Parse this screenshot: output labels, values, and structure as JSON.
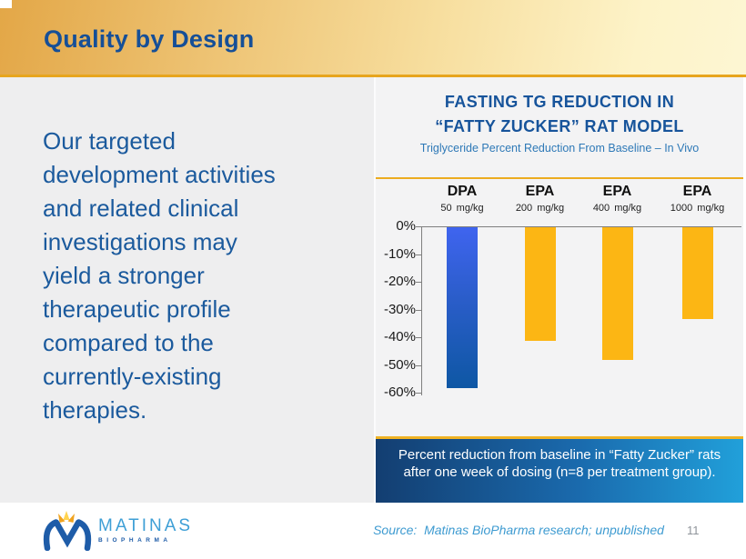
{
  "slide": {
    "title": "Quality by Design",
    "page_number": "11",
    "source_text": "Source:  Matinas BioPharma research; unpublished"
  },
  "left_panel": {
    "body_text": "Our targeted\ndevelopment activities\nand related clinical\ninvestigations may\nyield a stronger\ntherapeutic profile\ncompared to the\ncurrently-existing\ntherapies."
  },
  "chart_data": {
    "type": "bar",
    "title_line1": "FASTING TG REDUCTION IN",
    "title_line2": "“FATTY ZUCKER” RAT MODEL",
    "subtitle": "Triglyceride Percent Reduction From Baseline – In Vivo",
    "categories": [
      "DPA",
      "EPA",
      "EPA",
      "EPA"
    ],
    "doses": [
      "50 mg/kg",
      "200 mg/kg",
      "400 mg/kg",
      "1000 mg/kg"
    ],
    "values": [
      -58,
      -41,
      -48,
      -33
    ],
    "unit": "%",
    "bar_styles": [
      "blue",
      "gold",
      "gold",
      "gold"
    ],
    "y_ticks": [
      "0%",
      "-10%",
      "-20%",
      "-30%",
      "-40%",
      "-50%",
      "-60%"
    ],
    "ylim": [
      0,
      -60
    ],
    "grid": "off",
    "legend": "none",
    "caption": "Percent reduction from baseline in “Fatty Zucker” rats\nafter one week of dosing (n=8 per treatment group)."
  },
  "footer": {
    "logo_name": "MATINAS",
    "logo_sub": "BIOPHARMA"
  },
  "colors": {
    "header_gold": "#E7A51E",
    "title_blue": "#164F97",
    "body_blue": "#1B5A9D",
    "chart_title_blue": "#17549B",
    "chart_subtitle_blue": "#2E79B7",
    "bar_gold": "#FCB614",
    "bar_blue_top": "#3F64EF",
    "bar_blue_bottom": "#0E57A4",
    "caption_left": "#133E71",
    "caption_right": "#21A0DA",
    "source_blue": "#3E9BD1"
  }
}
